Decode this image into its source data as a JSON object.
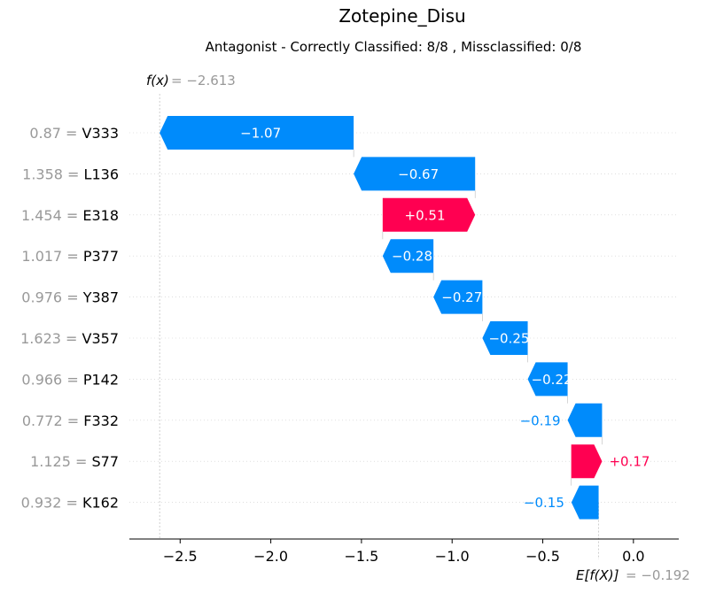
{
  "chart_data": {
    "type": "waterfall",
    "title": "Zotepine_Disu",
    "subtitle": "Antagonist - Correctly Classified: 8/8 , Missclassified: 0/8",
    "fx_label": "f(x)",
    "fx_value_text": " = −2.613",
    "fx_value": -2.613,
    "ex_label": "E[f(X)]",
    "ex_value_text": " = −0.192",
    "ex_value": -0.192,
    "xlim": [
      -2.78,
      0.25
    ],
    "xticks": [
      {
        "value": -2.5,
        "label": "−2.5"
      },
      {
        "value": -2.0,
        "label": "−2.0"
      },
      {
        "value": -1.5,
        "label": "−1.5"
      },
      {
        "value": -1.0,
        "label": "−1.0"
      },
      {
        "value": -0.5,
        "label": "−0.5"
      },
      {
        "value": 0.0,
        "label": "0.0"
      }
    ],
    "features": [
      {
        "value_text": "0.87",
        "name": "V333",
        "contribution": -1.07,
        "label": "−1.07",
        "start": -1.543,
        "end": -2.613
      },
      {
        "value_text": "1.358",
        "name": "L136",
        "contribution": -0.67,
        "label": "−0.67",
        "start": -0.873,
        "end": -1.543
      },
      {
        "value_text": "1.454",
        "name": "E318",
        "contribution": 0.51,
        "label": "+0.51",
        "start": -1.383,
        "end": -0.873
      },
      {
        "value_text": "1.017",
        "name": "P377",
        "contribution": -0.28,
        "label": "−0.28",
        "start": -1.103,
        "end": -1.383
      },
      {
        "value_text": "0.976",
        "name": "Y387",
        "contribution": -0.27,
        "label": "−0.27",
        "start": -0.833,
        "end": -1.103
      },
      {
        "value_text": "1.623",
        "name": "V357",
        "contribution": -0.25,
        "label": "−0.25",
        "start": -0.583,
        "end": -0.833
      },
      {
        "value_text": "0.966",
        "name": "P142",
        "contribution": -0.22,
        "label": "−0.22",
        "start": -0.363,
        "end": -0.583
      },
      {
        "value_text": "0.772",
        "name": "F332",
        "contribution": -0.19,
        "label": "−0.19",
        "start": -0.173,
        "end": -0.363
      },
      {
        "value_text": "1.125",
        "name": "S77",
        "contribution": 0.17,
        "label": "+0.17",
        "start": -0.343,
        "end": -0.173
      },
      {
        "value_text": "0.932",
        "name": "K162",
        "contribution": -0.15,
        "label": "−0.15",
        "start": -0.192,
        "end": -0.342
      }
    ],
    "colors": {
      "negative": "#008bfb",
      "positive": "#ff0051",
      "muted_text": "#999999"
    }
  }
}
